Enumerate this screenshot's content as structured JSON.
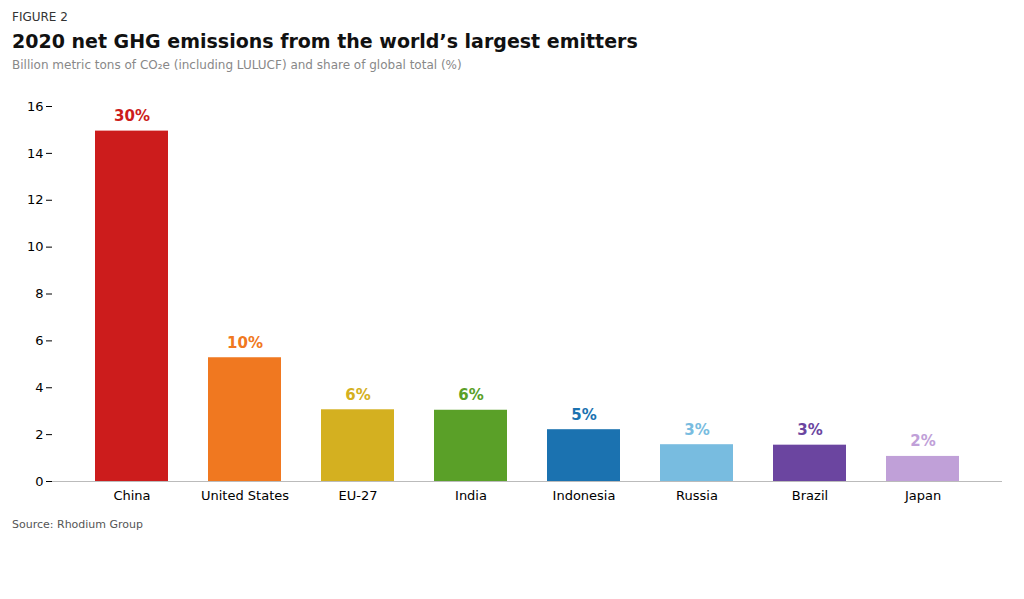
{
  "chart_data": {
    "type": "bar",
    "figure_label": "FIGURE 2",
    "title": "2020 net GHG emissions from the world’s largest emitters",
    "subtitle": "Billion metric tons of CO₂e (including LULUCF) and share of global total (%)",
    "source": "Source: Rhodium Group",
    "categories": [
      "China",
      "United States",
      "EU-27",
      "India",
      "Indonesia",
      "Russia",
      "Brazil",
      "Japan"
    ],
    "values": [
      14.95,
      5.28,
      3.06,
      3.04,
      2.21,
      1.57,
      1.55,
      1.07
    ],
    "colors": [
      "#cc1c1c",
      "#f07820",
      "#d4b020",
      "#5aa028",
      "#1b72b0",
      "#78bce0",
      "#6b45a0",
      "#c0a0d8"
    ],
    "shares": [
      {
        "value": 30,
        "label": "30%"
      },
      {
        "value": 10,
        "label": "10%"
      },
      {
        "value": 6,
        "label": "6%"
      },
      {
        "value": 6,
        "label": "6%"
      },
      {
        "value": 5,
        "label": "5%"
      },
      {
        "value": 3,
        "label": "3%"
      },
      {
        "value": 3,
        "label": "3%"
      },
      {
        "value": 2,
        "label": "2%"
      }
    ],
    "ylim": [
      0,
      16
    ],
    "yticks": [
      0,
      2,
      4,
      6,
      8,
      10,
      12,
      14,
      16
    ],
    "grid": false
  }
}
